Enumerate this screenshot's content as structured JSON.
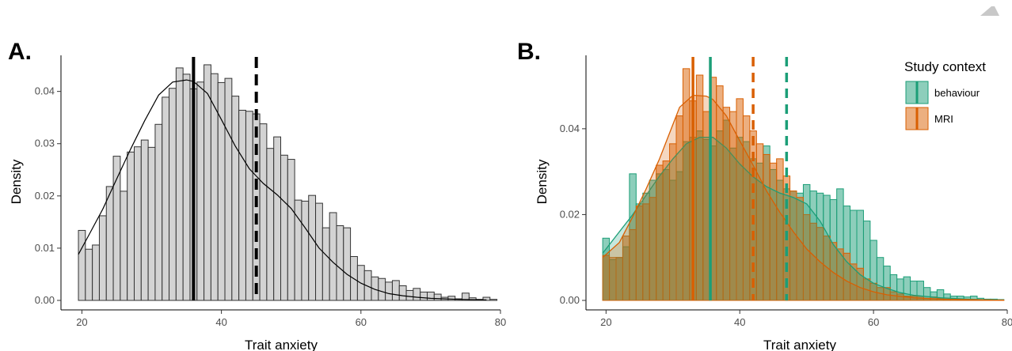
{
  "chart_data": [
    {
      "panel_label": "A.",
      "type": "bar",
      "subtype": "histogram-with-density",
      "xlabel": "Trait anxiety",
      "ylabel": "Density",
      "xlim": [
        17,
        80
      ],
      "ylim": [
        0,
        0.046
      ],
      "xticks": [
        20,
        40,
        60,
        80
      ],
      "yticks": [
        0.0,
        0.01,
        0.02,
        0.03,
        0.04
      ],
      "ytick_labels": [
        "0.00",
        "0.01",
        "0.02",
        "0.03",
        "0.04"
      ],
      "bin_start": 19.5,
      "bin_width": 1,
      "values": [
        0.0134,
        0.0098,
        0.0106,
        0.0162,
        0.0218,
        0.0276,
        0.0209,
        0.0284,
        0.0294,
        0.0307,
        0.0293,
        0.0337,
        0.0389,
        0.0406,
        0.0445,
        0.0433,
        0.0405,
        0.0418,
        0.0451,
        0.0434,
        0.0417,
        0.0425,
        0.0391,
        0.0364,
        0.0362,
        0.0357,
        0.0338,
        0.0291,
        0.0313,
        0.0278,
        0.027,
        0.0192,
        0.019,
        0.0201,
        0.0186,
        0.0139,
        0.0168,
        0.0143,
        0.0139,
        0.0084,
        0.0067,
        0.0057,
        0.0045,
        0.0042,
        0.0035,
        0.0038,
        0.0028,
        0.0019,
        0.0023,
        0.0016,
        0.0016,
        0.0012,
        0.0006,
        0.0008,
        0.0003,
        0.0014,
        0.0005,
        0.0002,
        0.0006,
        0.0002
      ],
      "density_curve": {
        "x": [
          19.5,
          21,
          23,
          25,
          27,
          29,
          31,
          33,
          35,
          36,
          38,
          40,
          42,
          44,
          46,
          48,
          50,
          52,
          54,
          56,
          58,
          60,
          62,
          64,
          66,
          68,
          70,
          74,
          78
        ],
        "y": [
          0.0088,
          0.0125,
          0.0175,
          0.0233,
          0.029,
          0.0344,
          0.0393,
          0.0418,
          0.0422,
          0.0419,
          0.0396,
          0.0346,
          0.0295,
          0.0252,
          0.0224,
          0.0202,
          0.0176,
          0.0139,
          0.01,
          0.0073,
          0.005,
          0.0033,
          0.0021,
          0.0013,
          0.0009,
          0.0006,
          0.0004,
          0.0002,
          0.0001
        ]
      },
      "fill_color": "#d3d3d3",
      "edge_color": "#333333",
      "vlines": [
        {
          "x": 36,
          "style": "solid",
          "color": "#000000"
        },
        {
          "x": 45,
          "style": "dashed",
          "color": "#000000"
        }
      ]
    },
    {
      "panel_label": "B.",
      "type": "bar",
      "subtype": "overlaid-histogram-with-density",
      "xlabel": "Trait anxiety",
      "ylabel": "Density",
      "xlim": [
        17,
        80
      ],
      "ylim": [
        0,
        0.056
      ],
      "xticks": [
        20,
        40,
        60,
        80
      ],
      "yticks": [
        0.0,
        0.02,
        0.04
      ],
      "ytick_labels": [
        "0.00",
        "0.02",
        "0.04"
      ],
      "bin_start": 19.5,
      "bin_width": 1,
      "legend_title": "Study context",
      "legend_position": "top-right",
      "series": [
        {
          "name": "behaviour",
          "color": "#1b9e77",
          "values": [
            0.0145,
            0.0095,
            0.01,
            0.0125,
            0.0295,
            0.0225,
            0.025,
            0.028,
            0.0295,
            0.0305,
            0.028,
            0.03,
            0.037,
            0.038,
            0.0395,
            0.0375,
            0.036,
            0.0395,
            0.042,
            0.0355,
            0.038,
            0.037,
            0.033,
            0.032,
            0.036,
            0.0305,
            0.028,
            0.026,
            0.0255,
            0.025,
            0.027,
            0.0255,
            0.025,
            0.0245,
            0.0235,
            0.026,
            0.022,
            0.021,
            0.021,
            0.0185,
            0.014,
            0.01,
            0.008,
            0.006,
            0.005,
            0.0055,
            0.0045,
            0.0045,
            0.003,
            0.002,
            0.0025,
            0.0015,
            0.001,
            0.001,
            0.0008,
            0.001,
            0.0005,
            0.0003,
            0.0003,
            0.0002
          ],
          "density_curve": {
            "x": [
              19.5,
              22,
              24,
              26,
              28,
              30,
              32,
              34,
              36,
              38,
              40,
              42,
              44,
              46,
              48,
              50,
              52,
              54,
              56,
              58,
              60,
              62,
              64,
              66,
              70,
              74,
              78
            ],
            "y": [
              0.011,
              0.016,
              0.02,
              0.0245,
              0.029,
              0.033,
              0.0365,
              0.038,
              0.038,
              0.0355,
              0.0318,
              0.0288,
              0.0265,
              0.025,
              0.024,
              0.0225,
              0.0185,
              0.013,
              0.009,
              0.006,
              0.004,
              0.0028,
              0.0018,
              0.0012,
              0.0006,
              0.0003,
              0.0001
            ]
          },
          "vlines": [
            {
              "x": 35.6,
              "style": "solid"
            },
            {
              "x": 47,
              "style": "dashed"
            }
          ]
        },
        {
          "name": "MRI",
          "color": "#d95f02",
          "values": [
            0.0105,
            0.01,
            0.01,
            0.015,
            0.0165,
            0.022,
            0.0225,
            0.024,
            0.0315,
            0.0325,
            0.0365,
            0.043,
            0.054,
            0.0465,
            0.0525,
            0.044,
            0.052,
            0.05,
            0.045,
            0.044,
            0.047,
            0.043,
            0.0395,
            0.0365,
            0.034,
            0.032,
            0.033,
            0.029,
            0.0255,
            0.024,
            0.02,
            0.018,
            0.017,
            0.015,
            0.0135,
            0.012,
            0.011,
            0.0085,
            0.0075,
            0.005,
            0.004,
            0.003,
            0.003,
            0.002,
            0.0015,
            0.001,
            0.001,
            0.001,
            0.0005,
            0.0008,
            0.0005,
            0.0003,
            0.0003,
            0.0002,
            0.0002,
            0.0002,
            0.0001,
            0.0001,
            0.0001,
            0.0001
          ],
          "density_curve": {
            "x": [
              19.5,
              22,
              24,
              26,
              28,
              30,
              31,
              33,
              35,
              36,
              38,
              40,
              42,
              44,
              46,
              48,
              50,
              52,
              54,
              56,
              58,
              60,
              62,
              66,
              70,
              74,
              78
            ],
            "y": [
              0.01,
              0.0135,
              0.0195,
              0.026,
              0.033,
              0.041,
              0.045,
              0.0478,
              0.0476,
              0.0468,
              0.043,
              0.0372,
              0.0315,
              0.0255,
              0.0205,
              0.016,
              0.012,
              0.009,
              0.0065,
              0.0045,
              0.003,
              0.002,
              0.0013,
              0.0006,
              0.0003,
              0.0002,
              0.0001
            ]
          },
          "vlines": [
            {
              "x": 33,
              "style": "solid"
            },
            {
              "x": 42,
              "style": "dashed"
            }
          ]
        }
      ]
    }
  ]
}
